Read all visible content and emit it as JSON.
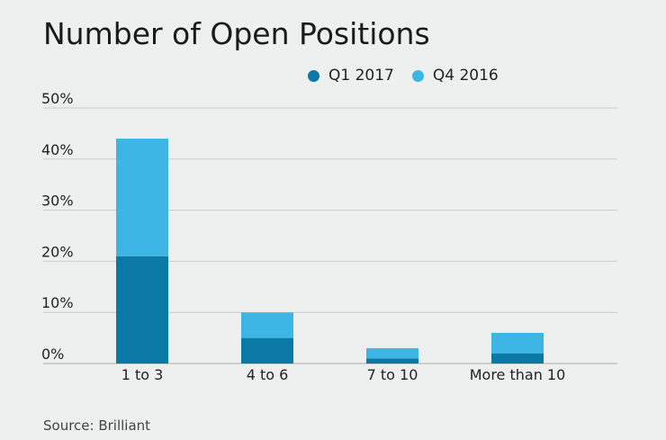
{
  "chart_data": {
    "type": "bar",
    "stacked": true,
    "title": "Number of Open Positions",
    "categories": [
      "1 to 3",
      "4 to 6",
      "7 to 10",
      "More than 10"
    ],
    "series": [
      {
        "name": "Q1 2017",
        "values": [
          21,
          5,
          1,
          2
        ],
        "color": "#0a79a6"
      },
      {
        "name": "Q4 2016",
        "values": [
          23,
          5,
          2,
          4
        ],
        "color": "#3db6e6"
      }
    ],
    "yticks": [
      "0%",
      "10%",
      "20%",
      "30%",
      "40%",
      "50%"
    ],
    "ylim": [
      0,
      50
    ],
    "grid": true,
    "legend_position": "top",
    "source": "Source: Brilliant"
  }
}
